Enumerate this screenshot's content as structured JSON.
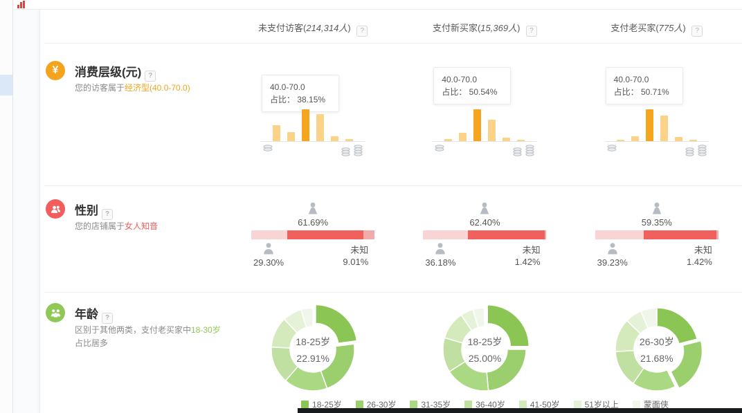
{
  "help_label": "?",
  "header": {
    "columns": [
      {
        "pre": "未支付访客(",
        "value": "214,314人",
        "post": ")"
      },
      {
        "pre": "支付新买家(",
        "value": "15,369人",
        "post": ")"
      },
      {
        "pre": "支付老买家(",
        "value": "775人",
        "post": ")"
      }
    ]
  },
  "consumption": {
    "title": "消费层级(元)",
    "icon_glyph": "¥",
    "desc_pre": "您的访客属于",
    "desc_highlight": "经济型(40.0-70.0)",
    "cells": [
      {
        "range": "40.0-70.0",
        "ratio": "占比： 38.15%"
      },
      {
        "range": "40.0-70.0",
        "ratio": "占比： 50.54%"
      },
      {
        "range": "40.0-70.0",
        "ratio": "占比： 50.71%"
      }
    ]
  },
  "gender": {
    "title": "性别",
    "desc_pre": "您的店铺属于",
    "desc_highlight": "女人知音",
    "unknown_label": "未知",
    "cells": [
      {
        "female": "61.69%",
        "male": "29.30%",
        "unknown": "9.01%"
      },
      {
        "female": "62.40%",
        "male": "36.18%",
        "unknown": "1.42%"
      },
      {
        "female": "59.35%",
        "male": "39.23%",
        "unknown": "1.42%"
      }
    ]
  },
  "age": {
    "title": "年龄",
    "desc_pre": "区别于其他两类，支付老买家中",
    "desc_highlight": "18-30岁",
    "desc_post": "占比居多",
    "cells": [
      {
        "center_label": "18-25岁",
        "center_value": "22.91%"
      },
      {
        "center_label": "18-25岁",
        "center_value": "25.00%"
      },
      {
        "center_label": "26-30岁",
        "center_value": "21.68%"
      }
    ]
  },
  "chart_data": [
    {
      "type": "bar",
      "title": "消费层级 - 未支付访客",
      "x_meaning": "消费层级从低到高",
      "highlight_bin": "40.0-70.0",
      "highlight_pct": 38.15,
      "highlight_index": 2,
      "values_rel": [
        51,
        29,
        100,
        84,
        16,
        7
      ],
      "colors": {
        "normal": "#fad389",
        "highlight": "#f6a51f"
      }
    },
    {
      "type": "bar",
      "title": "消费层级 - 支付新买家",
      "x_meaning": "消费层级从低到高",
      "highlight_bin": "40.0-70.0",
      "highlight_pct": 50.54,
      "highlight_index": 2,
      "values_rel": [
        6,
        25,
        100,
        67,
        10,
        4
      ],
      "colors": {
        "normal": "#fad389",
        "highlight": "#f6a51f"
      }
    },
    {
      "type": "bar",
      "title": "消费层级 - 支付老买家",
      "x_meaning": "消费层级从低到高",
      "highlight_bin": "40.0-70.0",
      "highlight_pct": 50.71,
      "highlight_index": 2,
      "values_rel": [
        4,
        15,
        100,
        81,
        12,
        4
      ],
      "colors": {
        "normal": "#fad389",
        "highlight": "#f6a51f"
      }
    },
    {
      "type": "stacked-bar",
      "title": "性别占比",
      "categories": [
        "未支付访客",
        "支付新买家",
        "支付老买家"
      ],
      "series": [
        {
          "key": "male",
          "name": "男",
          "values": [
            29.3,
            36.18,
            39.23
          ],
          "color": "#f9d4d4"
        },
        {
          "key": "female",
          "name": "女",
          "values": [
            61.69,
            62.4,
            59.35
          ],
          "color": "#f0605c"
        },
        {
          "key": "unknown",
          "name": "未知",
          "values": [
            9.01,
            1.42,
            1.42
          ],
          "color": "#f2abab"
        }
      ]
    },
    {
      "type": "donut",
      "title": "年龄占比",
      "labels": [
        "18-25岁",
        "26-30岁",
        "31-35岁",
        "36-40岁",
        "41-50岁",
        "51岁以上",
        "蒙面侠"
      ],
      "colors": [
        "#8bc655",
        "#9bcf6d",
        "#abd883",
        "#bfe0a0",
        "#d4eabd",
        "#e6f2d7",
        "#f1f6ea"
      ],
      "charts": [
        {
          "name": "未支付访客",
          "values": [
            22.91,
            21.5,
            17.0,
            14.5,
            12.0,
            7.5,
            4.59
          ],
          "explode_index": 0
        },
        {
          "name": "支付新买家",
          "values": [
            25.0,
            23.5,
            17.5,
            13.5,
            11.0,
            5.0,
            4.5
          ],
          "explode_index": 0
        },
        {
          "name": "支付老买家",
          "values": [
            21.0,
            21.68,
            17.0,
            14.5,
            13.0,
            6.5,
            6.32
          ],
          "explode_index": 1
        }
      ]
    }
  ]
}
